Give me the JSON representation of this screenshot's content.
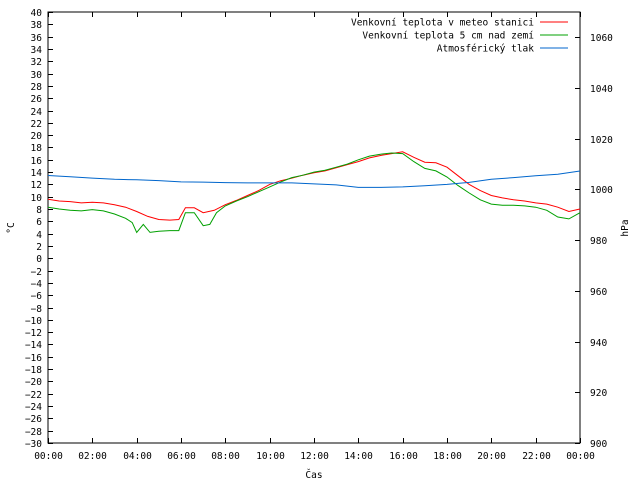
{
  "chart_data": {
    "type": "line",
    "xlabel": "Čas",
    "ylabel": "°C",
    "y2label": "hPa",
    "x_ticks": [
      "00:00",
      "02:00",
      "04:00",
      "06:00",
      "08:00",
      "10:00",
      "12:00",
      "14:00",
      "16:00",
      "18:00",
      "20:00",
      "22:00",
      "00:00"
    ],
    "x_range_hours": [
      0,
      24
    ],
    "ylim": [
      -30,
      40
    ],
    "y_ticks": [
      40,
      38,
      36,
      34,
      32,
      30,
      28,
      26,
      24,
      22,
      20,
      18,
      16,
      14,
      12,
      10,
      8,
      6,
      4,
      2,
      0,
      -2,
      -4,
      -6,
      -8,
      -10,
      -12,
      -14,
      -16,
      -18,
      -20,
      -22,
      -24,
      -26,
      -28,
      -30
    ],
    "y2lim": [
      900,
      1070
    ],
    "y2_ticks": [
      1060,
      1040,
      1020,
      1000,
      980,
      960,
      940,
      920,
      900
    ],
    "grid": false,
    "legend_position": "top-right",
    "series": [
      {
        "name": "Venkovní teplota v meteo stanici",
        "color": "#ff0000",
        "axis": "left",
        "x": [
          0,
          0.5,
          1,
          1.5,
          2,
          2.5,
          3,
          3.5,
          4,
          4.5,
          5,
          5.5,
          5.9,
          6.2,
          6.6,
          7,
          7.5,
          8,
          8.5,
          9,
          9.5,
          10,
          10.5,
          11,
          11.5,
          12,
          12.5,
          13,
          13.5,
          14,
          14.5,
          15,
          15.5,
          16,
          16.5,
          17,
          17.5,
          18,
          18.5,
          19,
          19.5,
          20,
          20.5,
          21,
          21.5,
          22,
          22.5,
          23,
          23.5,
          24
        ],
        "y": [
          9.6,
          9.3,
          9.2,
          9.0,
          9.1,
          9.0,
          8.7,
          8.3,
          7.6,
          6.8,
          6.3,
          6.2,
          6.3,
          8.2,
          8.2,
          7.4,
          7.8,
          8.7,
          9.4,
          10.2,
          11.0,
          12.0,
          12.6,
          13.0,
          13.5,
          13.9,
          14.2,
          14.7,
          15.2,
          15.7,
          16.3,
          16.7,
          17.0,
          17.3,
          16.4,
          15.6,
          15.5,
          14.8,
          13.4,
          12.0,
          11.0,
          10.2,
          9.8,
          9.5,
          9.3,
          9.0,
          8.8,
          8.3,
          7.6,
          8.0
        ]
      },
      {
        "name": "Venkovní teplota 5 cm nad zemí",
        "color": "#00a000",
        "axis": "left",
        "x": [
          0,
          0.5,
          1,
          1.5,
          2,
          2.5,
          3,
          3.5,
          3.8,
          4,
          4.3,
          4.6,
          5,
          5.5,
          5.9,
          6.2,
          6.6,
          7,
          7.3,
          7.6,
          8,
          8.5,
          9,
          9.5,
          10,
          10.5,
          11,
          11.5,
          12,
          12.5,
          13,
          13.5,
          14,
          14.5,
          15,
          15.5,
          16,
          16.5,
          17,
          17.5,
          18,
          18.5,
          19,
          19.5,
          20,
          20.5,
          21,
          21.5,
          22,
          22.5,
          23,
          23.5,
          24
        ],
        "y": [
          8.3,
          8.0,
          7.8,
          7.7,
          7.9,
          7.7,
          7.2,
          6.5,
          5.8,
          4.2,
          5.5,
          4.2,
          4.4,
          4.5,
          4.5,
          7.4,
          7.4,
          5.3,
          5.5,
          7.4,
          8.5,
          9.3,
          10.0,
          10.8,
          11.6,
          12.4,
          13.1,
          13.5,
          14.0,
          14.3,
          14.8,
          15.3,
          16.0,
          16.6,
          16.9,
          17.1,
          17.0,
          15.7,
          14.6,
          14.2,
          13.2,
          11.8,
          10.6,
          9.5,
          8.8,
          8.6,
          8.6,
          8.5,
          8.3,
          7.8,
          6.7,
          6.4,
          7.4
        ]
      },
      {
        "name": "Atmosférický tlak",
        "color": "#0066cc",
        "axis": "right",
        "x": [
          0,
          1,
          2,
          3,
          4,
          5,
          6,
          7,
          8,
          9,
          10,
          11,
          12,
          13,
          14,
          15,
          16,
          17,
          18,
          19,
          20,
          21,
          22,
          23,
          24
        ],
        "y": [
          1005.5,
          1005.0,
          1004.5,
          1004.0,
          1003.8,
          1003.5,
          1003.0,
          1002.9,
          1002.7,
          1002.6,
          1002.6,
          1002.6,
          1002.2,
          1001.8,
          1000.8,
          1000.8,
          1001.0,
          1001.5,
          1002.0,
          1002.8,
          1004.0,
          1004.7,
          1005.4,
          1006.0,
          1007.3
        ]
      }
    ]
  }
}
